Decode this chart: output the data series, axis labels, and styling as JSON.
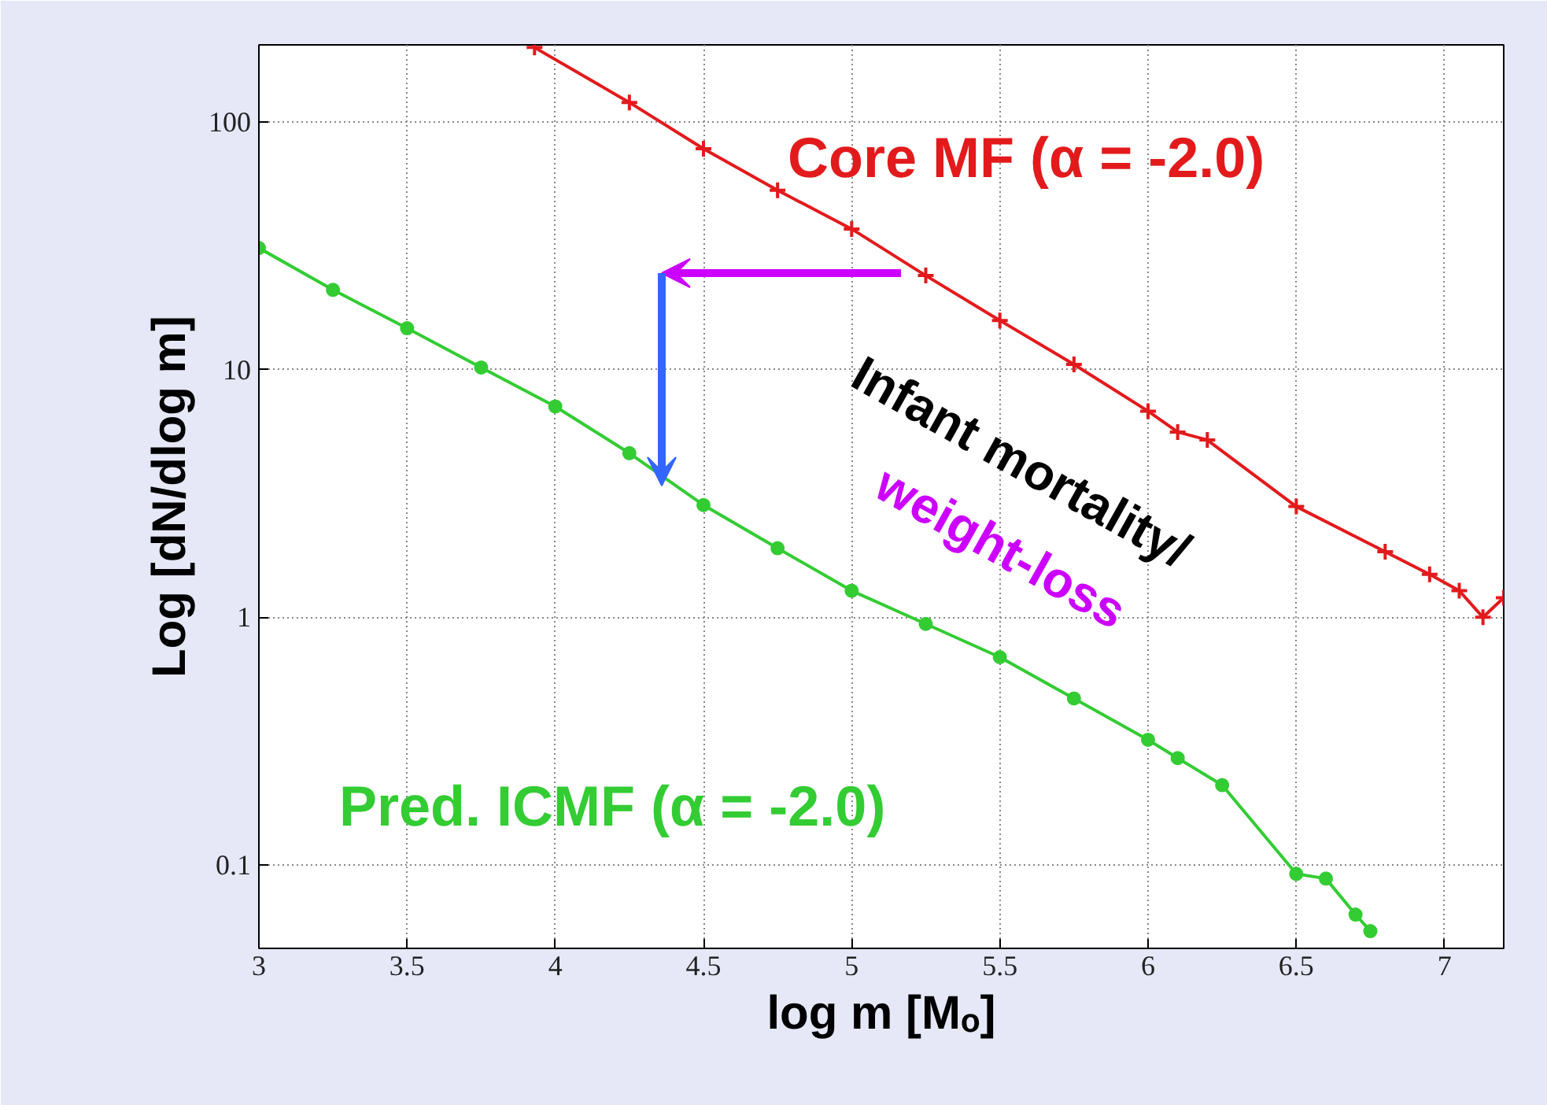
{
  "chart_data": {
    "type": "line",
    "xlabel": "log m [Mₒ]",
    "ylabel": "Log [dN/dlog m]",
    "log": "y",
    "xlim": [
      3,
      7.2
    ],
    "ylim": [
      0.046,
      205
    ],
    "xticks": [
      3,
      3.5,
      4,
      4.5,
      5,
      5.5,
      6,
      6.5,
      7
    ],
    "yticks": [
      0.1,
      1,
      10,
      100
    ],
    "grid": true,
    "legend": false,
    "series": [
      {
        "name": "Core MF (α = -2.0)",
        "color": "#e31a1c",
        "marker": "cross",
        "x": [
          3.93,
          4.25,
          4.5,
          4.75,
          5.0,
          5.25,
          5.5,
          5.75,
          6.0,
          6.1,
          6.2,
          6.5,
          6.8,
          6.95,
          7.05,
          7.13,
          7.2
        ],
        "values": [
          200,
          120,
          78,
          53,
          37,
          24,
          15.8,
          10.5,
          6.8,
          5.6,
          5.2,
          2.8,
          1.84,
          1.49,
          1.28,
          1.0,
          1.2
        ]
      },
      {
        "name": "Pred. ICMF (α = -2.0)",
        "color": "#33cc33",
        "marker": "circle",
        "x": [
          3.0,
          3.25,
          3.5,
          3.75,
          4.0,
          4.25,
          4.5,
          4.75,
          5.0,
          5.25,
          5.5,
          5.75,
          6.0,
          6.1,
          6.25,
          6.5,
          6.6,
          6.7,
          6.75
        ],
        "values": [
          31,
          21,
          14.7,
          10.2,
          7.1,
          4.6,
          2.84,
          1.9,
          1.28,
          0.94,
          0.69,
          0.47,
          0.32,
          0.27,
          0.21,
          0.092,
          0.088,
          0.063,
          0.054
        ]
      }
    ],
    "annotations": [
      "Infant mortality/",
      "weight-loss"
    ]
  }
}
